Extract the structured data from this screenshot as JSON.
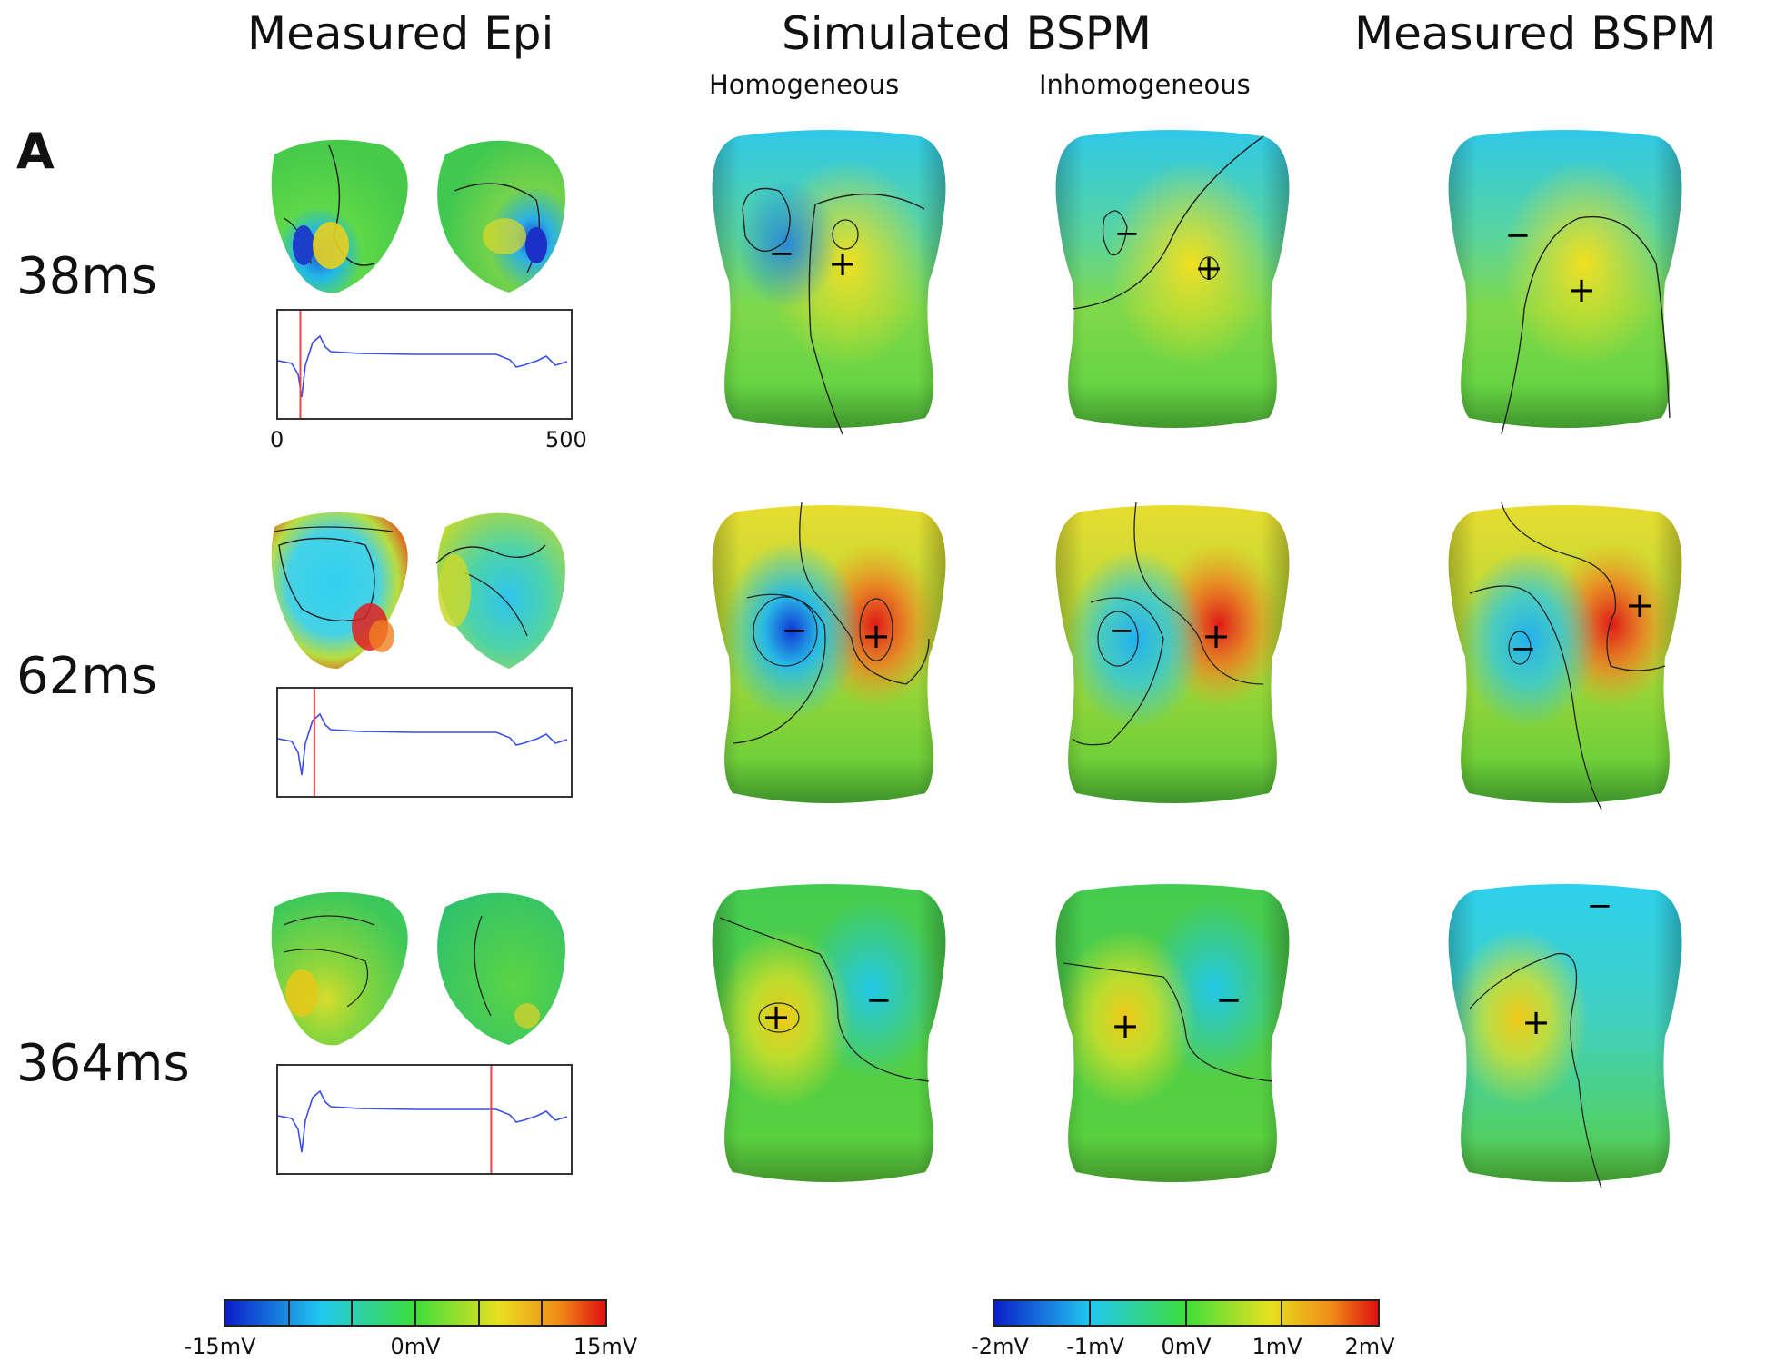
{
  "headers": {
    "measured_epi": "Measured Epi",
    "simulated_bspm": "Simulated BSPM",
    "measured_bspm": "Measured BSPM",
    "homogeneous": "Homogeneous",
    "inhomogeneous": "Inhomogeneous"
  },
  "panel_label": "A",
  "rows": [
    {
      "time": "38ms",
      "marker_ms": 38
    },
    {
      "time": "62ms",
      "marker_ms": 62
    },
    {
      "time": "364ms",
      "marker_ms": 364
    }
  ],
  "trace_axis": {
    "min_label": "0",
    "max_label": "500",
    "range_ms": [
      0,
      500
    ]
  },
  "colorbar_epi": {
    "labels": [
      "-15mV",
      "0mV",
      "15mV"
    ],
    "range_mV": [
      -15,
      15
    ],
    "colors": [
      "#0a1ec8",
      "#21c8f0",
      "#3ede3a",
      "#e8e020",
      "#f08a18",
      "#e01010"
    ]
  },
  "colorbar_bspm": {
    "labels": [
      "-2mV",
      "-1mV",
      "0mV",
      "1mV",
      "2mV"
    ],
    "range_mV": [
      -2,
      2
    ],
    "colors": [
      "#0a1ec8",
      "#21c8f0",
      "#3ede3a",
      "#e8e020",
      "#f08a18",
      "#e01010"
    ]
  },
  "colors": {
    "trace": "#3a4ee8",
    "time_marker": "#ef4444"
  },
  "torso_signs": {
    "row1": {
      "homogeneous": [
        "−",
        "+"
      ],
      "inhomogeneous": [
        "−",
        "+"
      ],
      "measured": [
        "−",
        "+"
      ]
    },
    "row2": {
      "homogeneous": [
        "−",
        "+"
      ],
      "inhomogeneous": [
        "−",
        "+"
      ],
      "measured": [
        "−",
        "+"
      ]
    },
    "row3": {
      "homogeneous": [
        "+",
        "−"
      ],
      "inhomogeneous": [
        "+",
        "−"
      ],
      "measured": [
        "+",
        "−"
      ]
    }
  }
}
